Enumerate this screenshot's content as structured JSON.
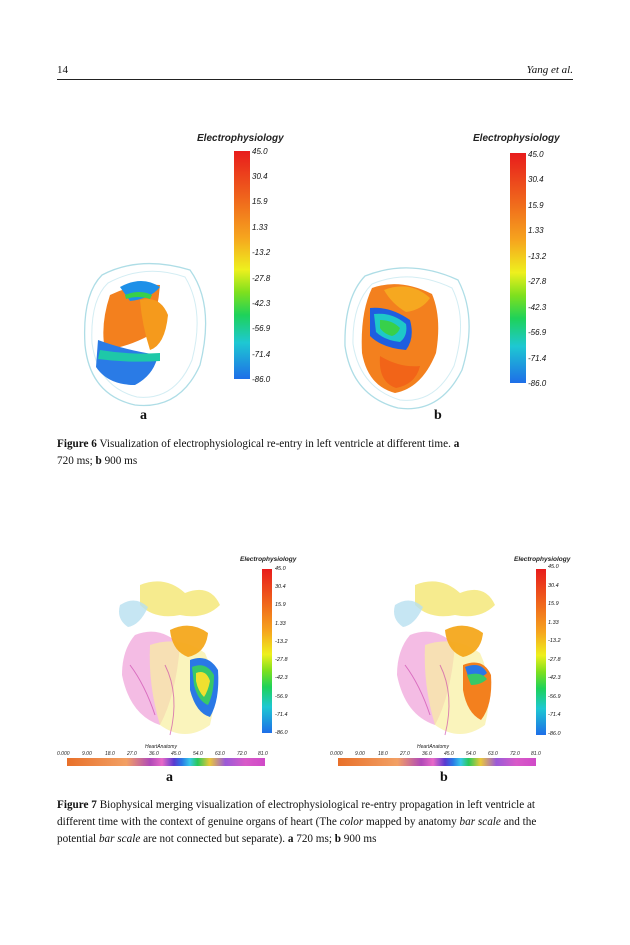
{
  "header": {
    "page_number": "14",
    "running_head": "Yang et al."
  },
  "figure6": {
    "colorbar": {
      "title": "Electrophysiology",
      "ticks": [
        "45.0",
        "30.4",
        "15.9",
        "1.33",
        "-13.2",
        "-27.8",
        "-42.3",
        "-56.9",
        "-71.4",
        "-86.0"
      ]
    },
    "panels": [
      "a",
      "b"
    ],
    "caption": {
      "label": "Figure 6",
      "text": " Visualization of electrophysiological re-entry in left ventricle at different time.",
      "a_label": "a",
      "a_text": " 720 ms;",
      "b_label": "b",
      "b_text": " 900 ms"
    }
  },
  "figure7": {
    "colorbar": {
      "title": "Electrophysiology",
      "ticks": [
        "45.0",
        "30.4",
        "15.9",
        "1.33",
        "-13.2",
        "-27.8",
        "-42.3",
        "-56.9",
        "-71.4",
        "-86.0"
      ]
    },
    "anatomy_bar": {
      "title": "HeartAnatomy",
      "ticks": [
        "0.000",
        "9.00",
        "18.0",
        "27.0",
        "36.0",
        "45.0",
        "54.0",
        "63.0",
        "72.0",
        "81.0"
      ]
    },
    "panels": [
      "a",
      "b"
    ],
    "caption": {
      "label": "Figure 7",
      "text1": " Biophysical merging visualization of electrophysiological re-entry propagation in left ventricle at different time with the context of genuine organs of heart (The ",
      "color_word": "color",
      "text2": " mapped by anatomy ",
      "bar_scale_1": "bar scale",
      "text3": " and the potential ",
      "bar_scale_2": "bar scale",
      "text4": " are not connected but separate).",
      "a_label": "a",
      "a_text": " 720 ms;",
      "b_label": "b",
      "b_text": " 900 ms"
    }
  }
}
